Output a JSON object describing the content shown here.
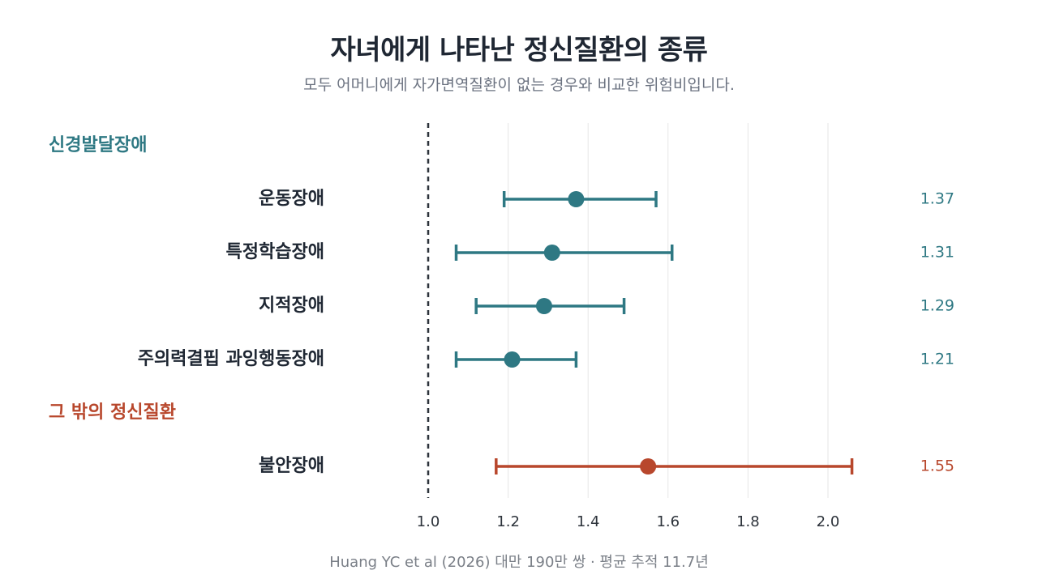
{
  "header": {
    "title": "자녀에게 나타난 정신질환의 종류",
    "subtitle": "모두 어머니에게 자가면역질환이 없는 경우와 비교한 위험비입니다."
  },
  "footer": {
    "source": "Huang YC et al (2026) 대만 190만 쌍 · 평균 추적 11.7년"
  },
  "colors": {
    "teal": "#2e7883",
    "rust": "#b8472c",
    "text": "#1f2733",
    "grid": "#e6e6e6",
    "reference": "#2d333b"
  },
  "chart_data": {
    "type": "forest",
    "reference_value": 1.0,
    "xlim": [
      1.0,
      2.1
    ],
    "xticks": [
      1.0,
      1.2,
      1.4,
      1.6,
      1.8,
      2.0
    ],
    "xtick_labels": [
      "1.0",
      "1.2",
      "1.4",
      "1.6",
      "1.8",
      "2.0"
    ],
    "grid": true,
    "groups": [
      {
        "name": "신경발달장애",
        "color": "#2e7883",
        "items": [
          {
            "label": "운동장애",
            "estimate": 1.37,
            "ci_low": 1.19,
            "ci_high": 1.57,
            "value_label": "1.37"
          },
          {
            "label": "특정학습장애",
            "estimate": 1.31,
            "ci_low": 1.07,
            "ci_high": 1.61,
            "value_label": "1.31"
          },
          {
            "label": "지적장애",
            "estimate": 1.29,
            "ci_low": 1.12,
            "ci_high": 1.49,
            "value_label": "1.29"
          },
          {
            "label": "주의력결핍 과잉행동장애",
            "estimate": 1.21,
            "ci_low": 1.07,
            "ci_high": 1.37,
            "value_label": "1.21"
          }
        ]
      },
      {
        "name": "그 밖의 정신질환",
        "color": "#b8472c",
        "items": [
          {
            "label": "불안장애",
            "estimate": 1.55,
            "ci_low": 1.17,
            "ci_high": 2.06,
            "value_label": "1.55"
          }
        ]
      }
    ]
  }
}
